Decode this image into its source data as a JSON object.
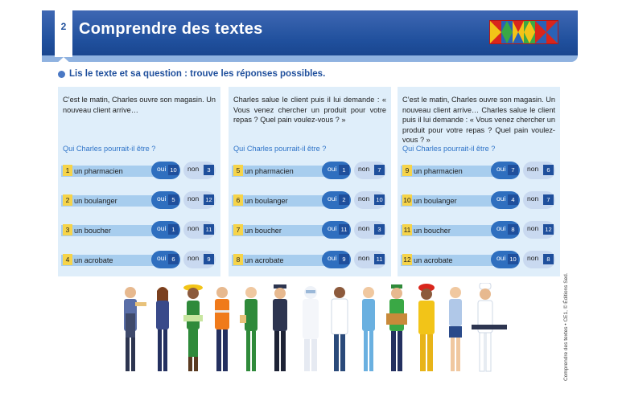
{
  "header": {
    "page_number": "2",
    "title": "Comprendre des textes"
  },
  "instruction": "Lis le texte et sa question : trouve les réponses possibles.",
  "panels": [
    {
      "text": "C’est le matin, Charles ouvre son magasin. Un nouveau client arrive…",
      "question": "Qui Charles pourrait-il être ?",
      "rows": [
        {
          "num": "1",
          "label": "un pharmacien",
          "oui": "10",
          "non": "3"
        },
        {
          "num": "2",
          "label": "un boulanger",
          "oui": "5",
          "non": "12"
        },
        {
          "num": "3",
          "label": "un boucher",
          "oui": "1",
          "non": "11"
        },
        {
          "num": "4",
          "label": "un acrobate",
          "oui": "6",
          "non": "9"
        }
      ]
    },
    {
      "text": "Charles salue le client puis il lui demande : « Vous venez chercher un produit pour votre repas ? Quel pain voulez-vous ? »",
      "question": "Qui Charles pourrait-il être ?",
      "rows": [
        {
          "num": "5",
          "label": "un pharmacien",
          "oui": "1",
          "non": "7"
        },
        {
          "num": "6",
          "label": "un boulanger",
          "oui": "2",
          "non": "10"
        },
        {
          "num": "7",
          "label": "un boucher",
          "oui": "11",
          "non": "3"
        },
        {
          "num": "8",
          "label": "un acrobate",
          "oui": "9",
          "non": "11"
        }
      ]
    },
    {
      "text": "C’est le matin, Charles ouvre son magasin. Un nouveau client arrive… Charles salue le client puis il lui demande : « Vous venez chercher un produit pour votre repas ? Quel pain voulez-vous ? »",
      "question": "Qui Charles pourrait-il être ?",
      "rows": [
        {
          "num": "9",
          "label": "un pharmacien",
          "oui": "7",
          "non": "6"
        },
        {
          "num": "10",
          "label": "un boulanger",
          "oui": "4",
          "non": "7"
        },
        {
          "num": "11",
          "label": "un boucher",
          "oui": "8",
          "non": "12"
        },
        {
          "num": "12",
          "label": "un acrobate",
          "oui": "10",
          "non": "8"
        }
      ]
    }
  ],
  "labels": {
    "oui": "oui",
    "non": "non"
  },
  "credit": "Comprendre des textes • CE1, © Éditions Sed.",
  "colors": {
    "header": "#1f4f9c",
    "panel": "#dfeefa",
    "number_box": "#f6d44a",
    "oui": "#2f6fbf",
    "non": "#c9d9f0"
  }
}
